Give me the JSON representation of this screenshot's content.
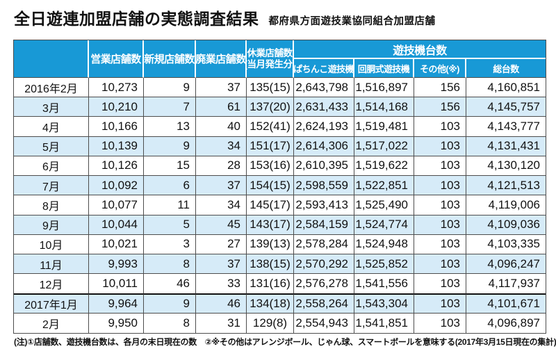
{
  "header": {
    "title": "全日遊連加盟店舗の実態調査結果",
    "subtitle": "都府県方面遊技業協同組合加盟店舗"
  },
  "footnotes": {
    "left": "(注)①店舗数、遊技機台数は、各月の末日現在の数　②※その他はアレンジボール、じゃん球、スマートボールを意味する",
    "right": "(2017年3月15日現在の集計)"
  },
  "colors": {
    "header_bg": "#1899d6",
    "row_alt_bg": "#d6ebf8",
    "border": "#4d4d4d"
  },
  "chart_data": {
    "type": "table",
    "title": "全日遊連加盟店舗の実態調査結果",
    "subtitle": "都府県方面遊技業協同組合加盟店舗",
    "column_group": {
      "label": "遊技機台数",
      "spans_columns": [
        "ぱちんこ遊技機",
        "回胴式遊技機",
        "その他(※)",
        "総台数"
      ]
    },
    "columns": [
      "",
      "営業店舗数",
      "新規店舗数",
      "廃業店舗数",
      "休業店舗数(当月発生分)",
      "ぱちんこ遊技機",
      "回胴式遊技機",
      "その他(※)",
      "総台数"
    ],
    "suspended_header_lines": [
      "休業店舗数",
      "(当月発生分)"
    ],
    "rows": [
      [
        "2016年2月",
        "10,273",
        "9",
        "37",
        "135(15)",
        "2,643,798",
        "1,516,897",
        "156",
        "4,160,851"
      ],
      [
        "3月",
        "10,210",
        "7",
        "61",
        "137(20)",
        "2,631,433",
        "1,514,168",
        "156",
        "4,145,757"
      ],
      [
        "4月",
        "10,166",
        "13",
        "40",
        "152(41)",
        "2,624,193",
        "1,519,481",
        "103",
        "4,143,777"
      ],
      [
        "5月",
        "10,139",
        "9",
        "34",
        "151(17)",
        "2,614,306",
        "1,517,022",
        "103",
        "4,131,431"
      ],
      [
        "6月",
        "10,126",
        "15",
        "28",
        "153(16)",
        "2,610,395",
        "1,519,622",
        "103",
        "4,130,120"
      ],
      [
        "7月",
        "10,092",
        "6",
        "37",
        "154(15)",
        "2,598,559",
        "1,522,851",
        "103",
        "4,121,513"
      ],
      [
        "8月",
        "10,077",
        "11",
        "34",
        "145(17)",
        "2,593,413",
        "1,525,490",
        "103",
        "4,119,006"
      ],
      [
        "9月",
        "10,044",
        "5",
        "45",
        "143(17)",
        "2,584,159",
        "1,524,774",
        "103",
        "4,109,036"
      ],
      [
        "10月",
        "10,021",
        "3",
        "27",
        "139(13)",
        "2,578,284",
        "1,524,948",
        "103",
        "4,103,335"
      ],
      [
        "11月",
        "9,993",
        "8",
        "37",
        "138(15)",
        "2,570,292",
        "1,525,852",
        "103",
        "4,096,247"
      ],
      [
        "12月",
        "10,011",
        "46",
        "33",
        "131(16)",
        "2,576,278",
        "1,541,556",
        "103",
        "4,117,937"
      ],
      [
        "2017年1月",
        "9,964",
        "9",
        "46",
        "134(18)",
        "2,558,264",
        "1,543,304",
        "103",
        "4,101,671"
      ],
      [
        "2月",
        "9,950",
        "8",
        "31",
        "129(8)",
        "2,554,943",
        "1,541,851",
        "103",
        "4,096,897"
      ]
    ],
    "highlight_rows": [
      1,
      3,
      5,
      7,
      9,
      11
    ],
    "thick_separator_before_row": 11
  }
}
